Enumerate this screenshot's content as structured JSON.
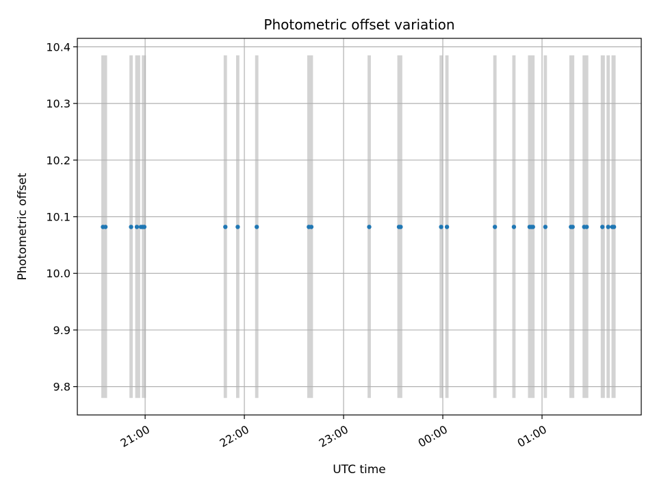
{
  "chart_data": {
    "type": "scatter",
    "title": "Photometric offset variation",
    "xlabel": "UTC time",
    "ylabel": "Photometric offset",
    "x_tick_labels": [
      "21:00",
      "22:00",
      "23:00",
      "00:00",
      "01:00"
    ],
    "x_ticks": [
      "2000-01-01T21:00",
      "2000-01-01T22:00",
      "2000-01-01T23:00",
      "2000-01-02T00:00",
      "2000-01-02T01:00"
    ],
    "xlim": [
      "2000-01-01T20:19",
      "2000-01-02T02:00"
    ],
    "ylim": [
      9.75,
      10.415
    ],
    "y_ticks": [
      9.8,
      9.9,
      10.0,
      10.1,
      10.2,
      10.3,
      10.4
    ],
    "y_tick_labels": [
      "9.8",
      "9.9",
      "10.0",
      "10.1",
      "10.2",
      "10.3",
      "10.4"
    ],
    "grid": true,
    "series": [
      {
        "color": "#1f77b4",
        "x": [
          "2000-01-01T20:34:30",
          "2000-01-01T20:36:00",
          "2000-01-01T20:51:30",
          "2000-01-01T20:55:00",
          "2000-01-01T20:57:30",
          "2000-01-01T20:58:30",
          "2000-01-01T20:59:30",
          "2000-01-01T21:48:30",
          "2000-01-01T21:56:00",
          "2000-01-01T22:07:30",
          "2000-01-01T22:39:00",
          "2000-01-01T22:40:30",
          "2000-01-01T23:15:30",
          "2000-01-01T23:33:30",
          "2000-01-01T23:34:30",
          "2000-01-01T23:59:00",
          "2000-01-02T00:02:30",
          "2000-01-02T00:31:30",
          "2000-01-02T00:43:00",
          "2000-01-02T00:52:30",
          "2000-01-02T00:53:30",
          "2000-01-02T00:54:30",
          "2000-01-02T01:02:00",
          "2000-01-02T01:17:30",
          "2000-01-02T01:18:30",
          "2000-01-02T01:25:30",
          "2000-01-02T01:27:00",
          "2000-01-02T01:36:30",
          "2000-01-02T01:40:00",
          "2000-01-02T01:42:30",
          "2000-01-02T01:43:30"
        ],
        "y": [
          10.082,
          10.082,
          10.082,
          10.082,
          10.082,
          10.082,
          10.082,
          10.082,
          10.082,
          10.082,
          10.082,
          10.082,
          10.082,
          10.082,
          10.082,
          10.082,
          10.082,
          10.082,
          10.082,
          10.082,
          10.082,
          10.082,
          10.082,
          10.082,
          10.082,
          10.082,
          10.082,
          10.082,
          10.082,
          10.082,
          10.082
        ]
      }
    ],
    "bands": {
      "color": "#d3d3d3",
      "y_range": [
        9.78,
        10.385
      ],
      "intervals": [
        [
          "2000-01-01T20:33:30",
          "2000-01-01T20:37:00"
        ],
        [
          "2000-01-01T20:50:30",
          "2000-01-01T20:52:30"
        ],
        [
          "2000-01-01T20:54:00",
          "2000-01-01T20:57:00"
        ],
        [
          "2000-01-01T20:58:00",
          "2000-01-01T21:00:30"
        ],
        [
          "2000-01-01T21:47:30",
          "2000-01-01T21:49:30"
        ],
        [
          "2000-01-01T21:55:00",
          "2000-01-01T21:57:00"
        ],
        [
          "2000-01-01T22:06:30",
          "2000-01-01T22:08:30"
        ],
        [
          "2000-01-01T22:38:00",
          "2000-01-01T22:41:30"
        ],
        [
          "2000-01-01T23:14:30",
          "2000-01-01T23:16:30"
        ],
        [
          "2000-01-01T23:32:30",
          "2000-01-01T23:35:30"
        ],
        [
          "2000-01-01T23:58:00",
          "2000-01-02T00:00:00"
        ],
        [
          "2000-01-02T00:01:30",
          "2000-01-02T00:03:30"
        ],
        [
          "2000-01-02T00:30:30",
          "2000-01-02T00:32:30"
        ],
        [
          "2000-01-02T00:42:00",
          "2000-01-02T00:44:00"
        ],
        [
          "2000-01-02T00:51:30",
          "2000-01-02T00:55:30"
        ],
        [
          "2000-01-02T01:01:00",
          "2000-01-02T01:03:00"
        ],
        [
          "2000-01-02T01:16:30",
          "2000-01-02T01:19:30"
        ],
        [
          "2000-01-02T01:24:30",
          "2000-01-02T01:28:00"
        ],
        [
          "2000-01-02T01:35:30",
          "2000-01-02T01:38:00"
        ],
        [
          "2000-01-02T01:39:00",
          "2000-01-02T01:41:00"
        ],
        [
          "2000-01-02T01:42:00",
          "2000-01-02T01:44:30"
        ]
      ]
    }
  }
}
